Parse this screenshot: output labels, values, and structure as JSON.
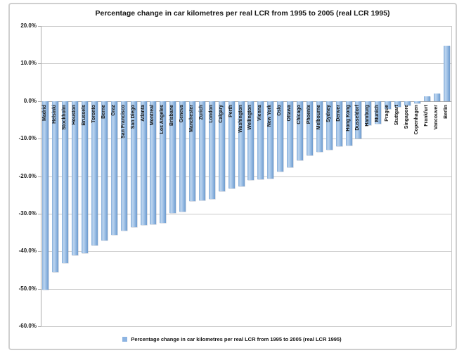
{
  "title": "Percentage change in car kilometres per real LCR from 1995 to 2005 (real LCR 1995)",
  "legend": {
    "label": "Percentage change in car kilometres per real LCR from 1995 to 2005 (real LCR 1995)",
    "marker_color": "#8db4e2",
    "position": "bottom"
  },
  "colors": {
    "bar_gradient_light": "#bdd5ef",
    "bar_gradient_mid": "#9dc0e6",
    "bar_gradient_dark": "#6e9bce",
    "gridline": "#c9c9c9",
    "axis_line": "#ababab",
    "frame_border": "#cfcfcf",
    "text": "#151515"
  },
  "y_axis": {
    "tick_labels": [
      "20.0%",
      "10.0%",
      "0.0%",
      "-10.0%",
      "-20.0%",
      "-30.0%",
      "-40.0%",
      "-50.0%",
      "-60.0%"
    ],
    "tick_values": [
      20,
      10,
      0,
      -10,
      -20,
      -30,
      -40,
      -50,
      -60
    ],
    "min": -60,
    "max": 20,
    "step": 10
  },
  "chart_data": {
    "type": "bar",
    "title": "Percentage change in car kilometres per real LCR from 1995 to 2005 (real LCR 1995)",
    "xlabel": "",
    "ylabel": "",
    "ylim": [
      -60,
      20
    ],
    "grid": true,
    "legend_position": "bottom",
    "legend_entries": [
      "Percentage change in car kilometres per real LCR from 1995 to 2005 (real LCR 1995)"
    ],
    "categories": [
      "Madrid",
      "Helsinki",
      "Stockholm",
      "Houston",
      "Brussels",
      "Toronto",
      "Berne",
      "Graz",
      "San Francisco",
      "San Diego",
      "Atlanta",
      "Montreal",
      "Los Angeles",
      "Brisbane",
      "Geneva",
      "Manchester",
      "Zurich",
      "London",
      "Calgary",
      "Perth",
      "Washington",
      "Wellington",
      "Vienna",
      "New York",
      "Oslo",
      "Ottawa",
      "Chicago",
      "Phoenix",
      "Melbourne",
      "Sydney",
      "Denver",
      "Hong Kong",
      "Dusseldorf",
      "Hamburg",
      "Munich",
      "Prague",
      "Stuttgart",
      "Singapore",
      "Copenhagen",
      "Frankfurt",
      "Vancouver",
      "Berlin"
    ],
    "values": [
      -50.2,
      -45.5,
      -43.2,
      -41.1,
      -40.5,
      -38.5,
      -37.2,
      -35.6,
      -34.6,
      -33.5,
      -33.1,
      -32.9,
      -32.5,
      -29.9,
      -29.5,
      -26.6,
      -26.4,
      -26.1,
      -24.0,
      -23.3,
      -22.7,
      -21.0,
      -20.9,
      -20.6,
      -18.8,
      -17.6,
      -15.7,
      -14.5,
      -13.6,
      -13.0,
      -12.1,
      -11.9,
      -9.9,
      -6.5,
      -6.1,
      -2.1,
      -1.6,
      -1.1,
      -0.6,
      1.3,
      2.1,
      14.7
    ],
    "value_unit": "%"
  }
}
